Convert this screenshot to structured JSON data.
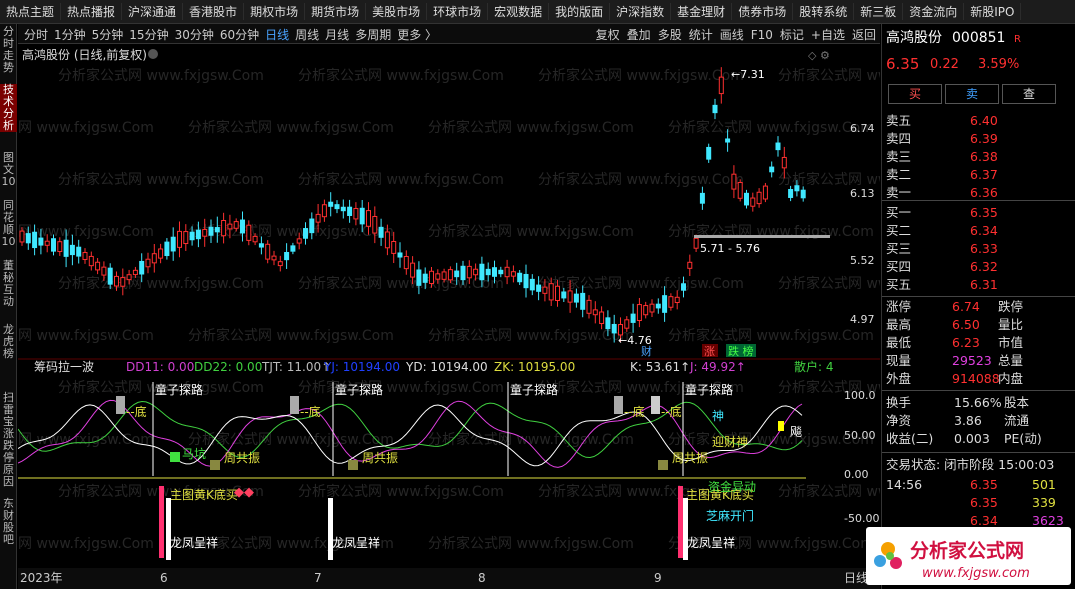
{
  "topnav": [
    "热点主题",
    "热点播报",
    "沪深通通",
    "香港股市",
    "期权市场",
    "期货市场",
    "美股市场",
    "环球市场",
    "宏观数据",
    "我的版面",
    "沪深指数",
    "基金理财",
    "债券市场",
    "股转系统",
    "新三板",
    "资金流向",
    "新股IPO"
  ],
  "leftbar": [
    {
      "label": "分时走势",
      "active": false
    },
    {
      "label": "技术分析",
      "active": true
    },
    {
      "label": "图文10",
      "active": false
    },
    {
      "label": "同花顺10",
      "active": false
    },
    {
      "label": "董秘互动",
      "active": false
    },
    {
      "label": "龙虎榜",
      "active": false
    },
    {
      "label": "扫雷宝",
      "active": false
    },
    {
      "label": "涨跌停原因",
      "active": false
    },
    {
      "label": "东财股吧",
      "active": false
    }
  ],
  "periods": [
    {
      "label": "分时",
      "active": false
    },
    {
      "label": "1分钟",
      "active": false
    },
    {
      "label": "5分钟",
      "active": false
    },
    {
      "label": "15分钟",
      "active": false
    },
    {
      "label": "30分钟",
      "active": false
    },
    {
      "label": "60分钟",
      "active": false
    },
    {
      "label": "日线",
      "active": true
    },
    {
      "label": "周线",
      "active": false
    },
    {
      "label": "月线",
      "active": false
    },
    {
      "label": "多周期",
      "active": false
    },
    {
      "label": "更多 〉",
      "active": false
    }
  ],
  "tools": [
    "复权",
    "叠加",
    "多股",
    "统计",
    "画线",
    "F10",
    "标记",
    "+自选",
    "返回"
  ],
  "chart": {
    "title": "高鸿股份 (日线,前复权)",
    "watermark": "分析家公式网 www.fxjgsw.Com",
    "price_labels": [
      "6.74",
      "6.13",
      "5.52",
      "4.97"
    ],
    "high_label": "7.31",
    "low_label": "4.76",
    "range_label": "5.71 - 5.76",
    "tags": {
      "cai": "财",
      "zhang": "涨",
      "diewu": "跌 榜"
    },
    "ind_name": "筹码拉一波",
    "ind_values": [
      {
        "text": "DD11: 0.00",
        "color": "#d040d0"
      },
      {
        "text": "DD22: 0.00",
        "color": "#40d040"
      },
      {
        "text": "TJT: 11.00↑",
        "color": "#bbbbbb"
      },
      {
        "text": "YJ: 10194.00",
        "color": "#2040ff"
      },
      {
        "text": "YD: 10194.00",
        "color": "#dddddd"
      },
      {
        "text": "ZK: 10195.00",
        "color": "#dddd40"
      }
    ],
    "ind_k": "K: 53.61↑",
    "ind_j": "J: 49.92↑",
    "ind_sanhu": "散户: 4",
    "ind_axis": [
      "100.0",
      "50.00",
      "0.00",
      "-50.00"
    ],
    "signals": {
      "tongzi": "童子探路",
      "di": "底",
      "mafeng": "马坑",
      "gongzhen": "周共振",
      "zhutu": "主图黄K底买",
      "longfeng": "龙凤呈祥",
      "caishen": "迎财神",
      "shen": "神",
      "biao": "飚",
      "zhima": "芝麻开门",
      "ziji": "资金异动",
      "cai2": "财"
    },
    "x_labels": [
      "2023年",
      "6",
      "7",
      "8",
      "9"
    ],
    "period_label": "日线"
  },
  "quote": {
    "name": "高鸿股份",
    "code": "000851",
    "badge": "R",
    "price": "6.35",
    "change": "0.22",
    "pct": "3.59%",
    "buttons": [
      "买",
      "卖",
      "查"
    ],
    "asks": [
      [
        "卖五",
        "6.40"
      ],
      [
        "卖四",
        "6.39"
      ],
      [
        "卖三",
        "6.38"
      ],
      [
        "卖二",
        "6.37"
      ],
      [
        "卖一",
        "6.36"
      ]
    ],
    "bids": [
      [
        "买一",
        "6.35"
      ],
      [
        "买二",
        "6.34"
      ],
      [
        "买三",
        "6.33"
      ],
      [
        "买四",
        "6.32"
      ],
      [
        "买五",
        "6.31"
      ]
    ],
    "stats": [
      [
        "涨停",
        "6.74",
        "跌停",
        ""
      ],
      [
        "最高",
        "6.50",
        "量比",
        ""
      ],
      [
        "最低",
        "6.23",
        "市值",
        ""
      ],
      [
        "现量",
        "29523",
        "总量",
        ""
      ],
      [
        "外盘",
        "914088",
        "内盘",
        ""
      ]
    ],
    "stats2": [
      [
        "换手",
        "15.66%",
        "股本"
      ],
      [
        "净资",
        "3.86",
        "流通"
      ],
      [
        "收益(二)",
        "0.003",
        "PE(动)"
      ]
    ],
    "trade_status": "交易状态: 闭市阶段 15:00:03",
    "ticks": [
      [
        "14:56",
        "6.35",
        "501"
      ],
      [
        "",
        "6.35",
        "339"
      ],
      [
        "",
        "6.34",
        "3623"
      ]
    ]
  },
  "logo": {
    "text": "分析家公式网",
    "url": "www.fxjgsw.com"
  }
}
